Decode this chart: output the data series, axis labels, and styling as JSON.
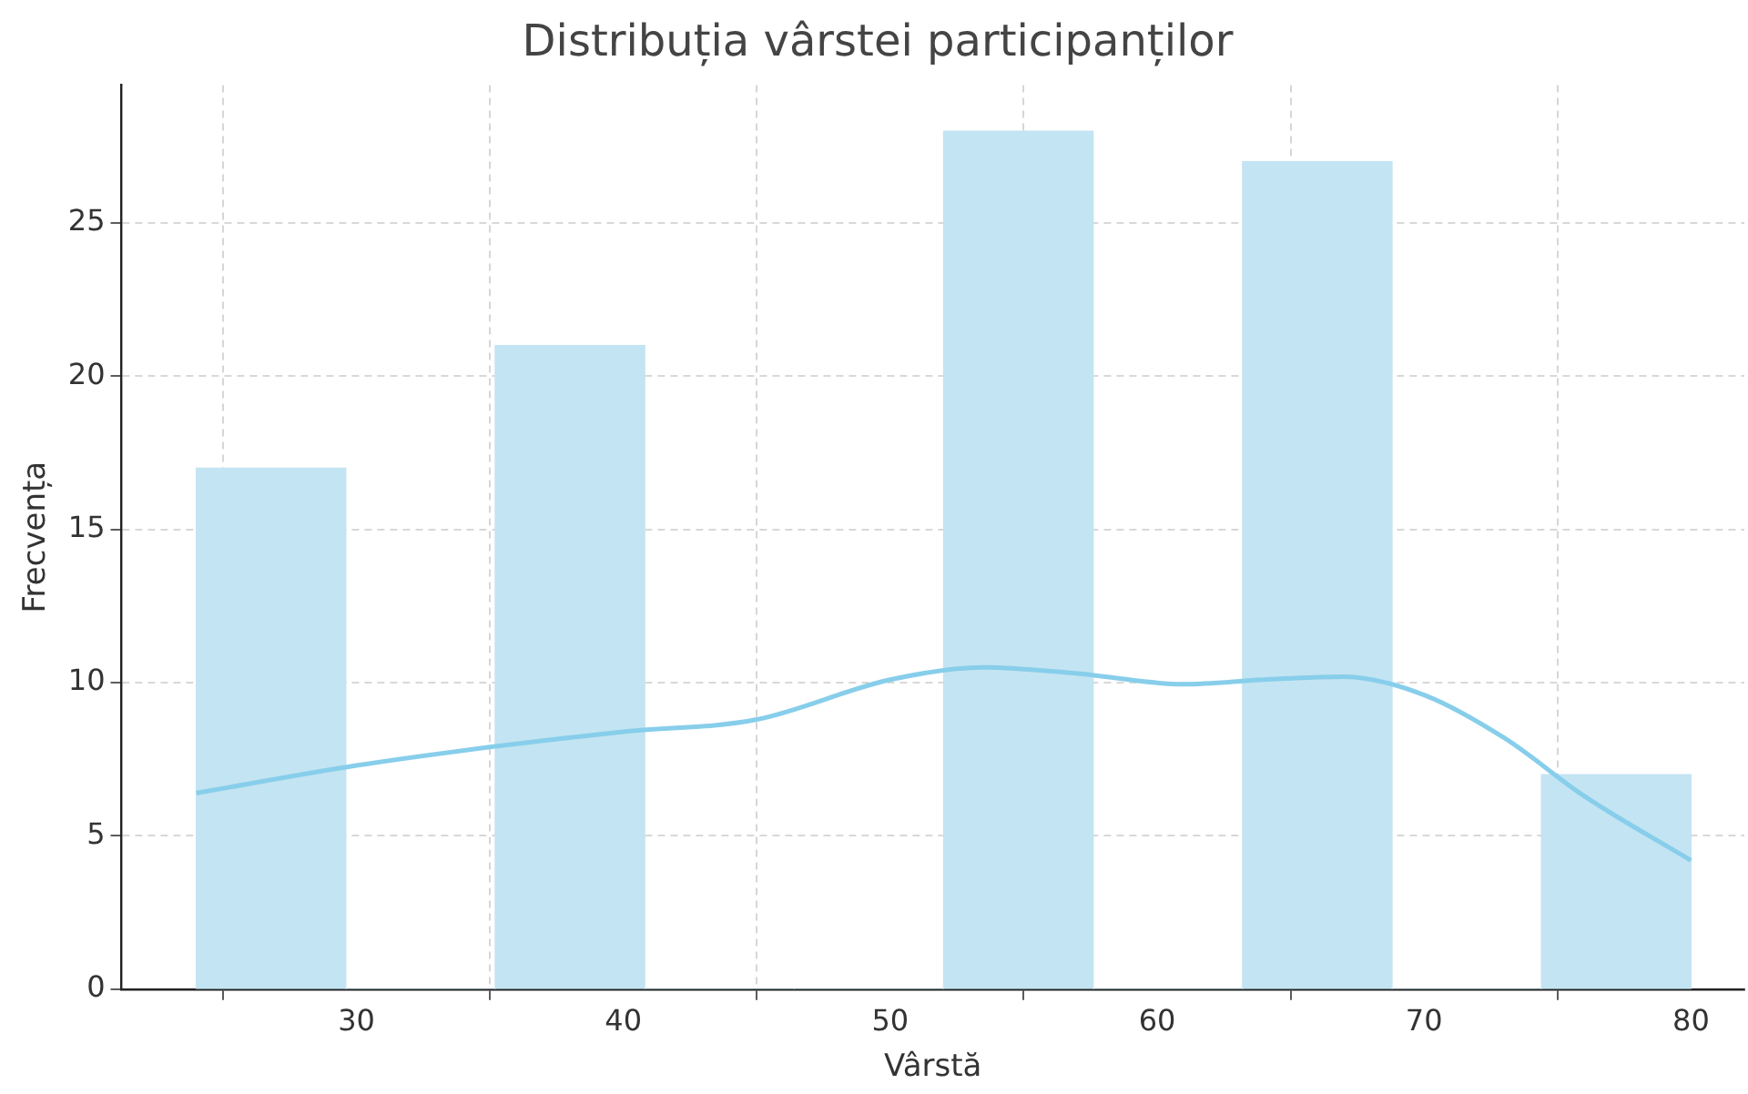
{
  "chart_data": {
    "type": "histogram",
    "title": "Distribuția vârstei participanților",
    "xlabel": "Vârstă",
    "ylabel": "Frecvența",
    "bins": [
      24,
      29.6,
      35.2,
      40.8,
      46.4,
      52,
      57.6,
      63.2,
      68.8,
      74.4,
      80
    ],
    "series": [
      {
        "type": "histogram",
        "color": "#c3e4f2",
        "values": [
          17,
          0,
          21,
          0,
          0,
          28,
          0,
          27,
          0,
          7
        ]
      },
      {
        "type": "line",
        "color": "#87ceeb",
        "x": [
          24,
          30,
          35,
          40,
          45,
          50,
          53.5,
          57,
          61,
          64,
          67,
          70,
          73,
          76,
          80
        ],
        "values": [
          6.4,
          7.3,
          7.9,
          8.4,
          8.8,
          10.1,
          10.5,
          10.3,
          9.95,
          10.1,
          10.2,
          9.6,
          8.2,
          6.3,
          4.2
        ]
      }
    ],
    "xlim": [
      21.2,
      82
    ],
    "ylim": [
      0,
      29.5
    ],
    "xticks": [
      30,
      40,
      50,
      60,
      70,
      80
    ],
    "yticks": [
      0,
      5,
      10,
      15,
      20,
      25
    ],
    "grid": true,
    "legend": false,
    "marker": "none",
    "line_style": "solid"
  }
}
